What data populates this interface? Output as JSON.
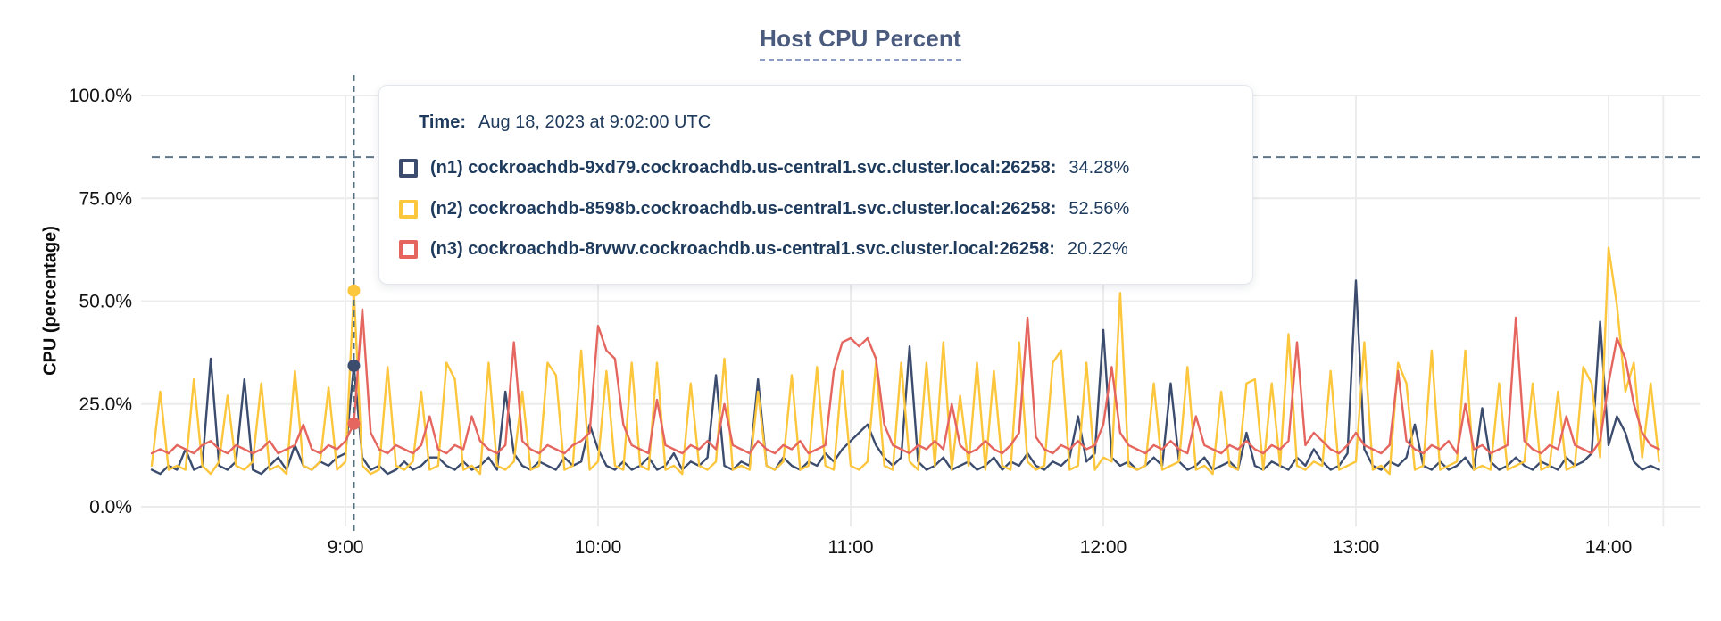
{
  "chart": {
    "title": "Host CPU Percent",
    "y_axis_title": "CPU (percentage)"
  },
  "tooltip": {
    "time_label": "Time:",
    "time_value": "Aug 18, 2023 at 9:02:00 UTC"
  },
  "colors": {
    "grid": "#ececec",
    "threshold_line": "#5f7589",
    "cursor_line": "#53707f",
    "axis_text": "#121212",
    "title_text": "#4a5b7d",
    "tooltip_text": "#1e3a5c"
  },
  "chart_data": {
    "type": "line",
    "title": "Host CPU Percent",
    "xlabel": "",
    "ylabel": "CPU (percentage)",
    "ylim": [
      0,
      100
    ],
    "grid": true,
    "y_ticks": [
      {
        "value": 0,
        "label": "0.0%"
      },
      {
        "value": 25,
        "label": "25.0%"
      },
      {
        "value": 50,
        "label": "50.0%"
      },
      {
        "value": 75,
        "label": "75.0%"
      },
      {
        "value": 100,
        "label": "100.0%"
      }
    ],
    "x_ticks": [
      {
        "minute": 540,
        "label": "9:00"
      },
      {
        "minute": 600,
        "label": "10:00"
      },
      {
        "minute": 660,
        "label": "11:00"
      },
      {
        "minute": 720,
        "label": "12:00"
      },
      {
        "minute": 780,
        "label": "13:00"
      },
      {
        "minute": 840,
        "label": "14:00"
      }
    ],
    "x_start_minute": 494,
    "x_step_minutes": 2,
    "x_end_minute": 852,
    "threshold_value": 85,
    "hover": {
      "minute": 542,
      "time_text": "Aug 18, 2023 at 9:02:00 UTC"
    },
    "series": [
      {
        "id": "n1",
        "name": "(n1) cockroachdb-9xd79.cockroachdb.us-central1.svc.cluster.local:26258:",
        "color": "#3b4c6e",
        "hover_value": 34.28,
        "hover_display": "34.28%",
        "values": [
          9,
          8,
          10,
          9,
          14,
          9,
          10,
          36,
          10,
          9,
          11,
          31,
          9,
          8,
          10,
          12,
          9,
          15,
          10,
          9,
          11,
          10,
          12,
          13,
          34.28,
          12,
          9,
          10,
          8,
          9,
          11,
          9,
          10,
          12,
          12,
          10,
          9,
          11,
          9,
          10,
          12,
          9,
          28,
          13,
          10,
          9,
          11,
          10,
          9,
          12,
          10,
          11,
          20,
          14,
          10,
          9,
          11,
          9,
          10,
          12,
          9,
          10,
          13,
          9,
          11,
          10,
          12,
          32,
          10,
          9,
          11,
          10,
          31,
          10,
          9,
          12,
          10,
          9,
          11,
          10,
          13,
          11,
          14,
          16,
          18,
          20,
          15,
          12,
          10,
          12,
          39,
          11,
          9,
          10,
          12,
          9,
          10,
          11,
          9,
          10,
          12,
          9,
          11,
          10,
          13,
          10,
          9,
          11,
          10,
          12,
          22,
          11,
          13,
          43,
          12,
          10,
          11,
          9,
          10,
          12,
          10,
          30,
          11,
          9,
          10,
          12,
          9,
          10,
          11,
          9,
          18,
          10,
          9,
          11,
          10,
          9,
          12,
          10,
          14,
          11,
          9,
          10,
          13,
          55,
          14,
          10,
          9,
          11,
          10,
          12,
          20,
          10,
          9,
          11,
          9,
          10,
          12,
          9,
          24,
          11,
          9,
          10,
          12,
          10,
          9,
          11,
          10,
          9,
          12,
          10,
          11,
          13,
          45,
          15,
          22,
          18,
          11,
          9,
          10,
          9
        ]
      },
      {
        "id": "n2",
        "name": "(n2) cockroachdb-8598b.cockroachdb.us-central1.svc.cluster.local:26258:",
        "color": "#fcc63d",
        "hover_value": 52.56,
        "hover_display": "52.56%",
        "values": [
          10,
          28,
          9,
          10,
          9,
          31,
          10,
          8,
          11,
          27,
          10,
          9,
          11,
          30,
          9,
          10,
          8,
          33,
          10,
          9,
          11,
          29,
          9,
          11,
          52.56,
          10,
          8,
          9,
          34,
          10,
          9,
          11,
          28,
          9,
          10,
          35,
          31,
          9,
          10,
          8,
          35,
          10,
          9,
          11,
          28,
          9,
          10,
          35,
          32,
          9,
          10,
          38,
          9,
          11,
          33,
          10,
          9,
          35,
          10,
          9,
          35,
          9,
          10,
          8,
          30,
          10,
          9,
          11,
          36,
          9,
          10,
          9,
          28,
          10,
          9,
          11,
          32,
          9,
          10,
          34,
          10,
          9,
          33,
          10,
          9,
          11,
          35,
          10,
          9,
          35,
          11,
          9,
          35,
          10,
          40,
          9,
          27,
          10,
          35,
          9,
          33,
          10,
          9,
          40,
          11,
          9,
          10,
          35,
          38,
          9,
          10,
          35,
          9,
          12,
          11,
          52,
          10,
          9,
          10,
          30,
          9,
          10,
          11,
          34,
          9,
          10,
          8,
          28,
          10,
          9,
          30,
          31,
          9,
          30,
          10,
          42,
          10,
          9,
          11,
          10,
          33,
          9,
          10,
          11,
          40,
          9,
          10,
          8,
          35,
          30,
          9,
          10,
          38,
          9,
          10,
          11,
          38,
          9,
          10,
          9,
          30,
          9,
          10,
          11,
          30,
          9,
          10,
          28,
          9,
          10,
          34,
          30,
          12,
          63,
          49,
          28,
          35,
          12,
          30,
          11
        ]
      },
      {
        "id": "n3",
        "name": "(n3) cockroachdb-8rvwv.cockroachdb.us-central1.svc.cluster.local:26258:",
        "color": "#e5655f",
        "hover_value": 20.22,
        "hover_display": "20.22%",
        "values": [
          13,
          14,
          13,
          15,
          14,
          13,
          15,
          16,
          14,
          13,
          15,
          14,
          13,
          14,
          16,
          13,
          14,
          15,
          20,
          14,
          13,
          15,
          14,
          16,
          20.22,
          48,
          18,
          14,
          13,
          15,
          14,
          13,
          15,
          22,
          14,
          13,
          15,
          14,
          22,
          16,
          14,
          13,
          15,
          40,
          16,
          14,
          13,
          15,
          14,
          13,
          15,
          16,
          18,
          44,
          38,
          36,
          20,
          15,
          14,
          13,
          26,
          15,
          14,
          13,
          15,
          14,
          16,
          14,
          25,
          15,
          14,
          13,
          16,
          14,
          13,
          15,
          14,
          16,
          13,
          14,
          15,
          33,
          40,
          41,
          39,
          41,
          36,
          20,
          15,
          14,
          13,
          15,
          14,
          16,
          14,
          25,
          15,
          13,
          14,
          16,
          14,
          13,
          15,
          18,
          46,
          17,
          14,
          13,
          15,
          14,
          16,
          14,
          15,
          20,
          34,
          18,
          15,
          14,
          13,
          15,
          14,
          16,
          14,
          13,
          22,
          15,
          14,
          13,
          15,
          14,
          16,
          14,
          13,
          15,
          14,
          16,
          40,
          15,
          18,
          16,
          14,
          13,
          15,
          18,
          15,
          14,
          13,
          15,
          33,
          16,
          14,
          13,
          15,
          14,
          16,
          13,
          25,
          14,
          15,
          13,
          14,
          15,
          46,
          16,
          14,
          13,
          15,
          14,
          22,
          15,
          14,
          13,
          16,
          30,
          41,
          36,
          25,
          18,
          15,
          14
        ]
      }
    ]
  }
}
